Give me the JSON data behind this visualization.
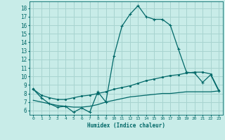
{
  "xlabel": "Humidex (Indice chaleur)",
  "background_color": "#c8ece8",
  "grid_color": "#a8d4d0",
  "line_color": "#006868",
  "x_values": [
    0,
    1,
    2,
    3,
    4,
    5,
    6,
    7,
    8,
    9,
    10,
    11,
    12,
    13,
    14,
    15,
    16,
    17,
    18,
    19,
    20,
    21,
    22,
    23
  ],
  "xlim": [
    -0.5,
    23.5
  ],
  "ylim": [
    5.5,
    18.8
  ],
  "yticks": [
    6,
    7,
    8,
    9,
    10,
    11,
    12,
    13,
    14,
    15,
    16,
    17,
    18
  ],
  "xticks": [
    0,
    1,
    2,
    3,
    4,
    5,
    6,
    7,
    8,
    9,
    10,
    11,
    12,
    13,
    14,
    15,
    16,
    17,
    18,
    19,
    20,
    21,
    22,
    23
  ],
  "curve1": [
    8.5,
    7.5,
    6.8,
    6.4,
    6.5,
    5.8,
    6.3,
    5.8,
    8.2,
    7.0,
    12.4,
    15.9,
    17.3,
    18.3,
    17.0,
    16.7,
    16.7,
    16.0,
    13.2,
    10.5,
    10.4,
    9.3,
    10.2,
    8.3
  ],
  "curve2": [
    8.5,
    7.8,
    7.5,
    7.3,
    7.3,
    7.5,
    7.7,
    7.8,
    8.0,
    8.2,
    8.5,
    8.7,
    8.9,
    9.2,
    9.5,
    9.7,
    9.9,
    10.1,
    10.2,
    10.4,
    10.5,
    10.5,
    10.3,
    8.4
  ],
  "curve3": [
    7.2,
    7.0,
    6.8,
    6.6,
    6.5,
    6.4,
    6.4,
    6.5,
    6.7,
    7.0,
    7.2,
    7.4,
    7.6,
    7.7,
    7.8,
    7.9,
    8.0,
    8.0,
    8.1,
    8.2,
    8.2,
    8.2,
    8.2,
    8.3
  ]
}
